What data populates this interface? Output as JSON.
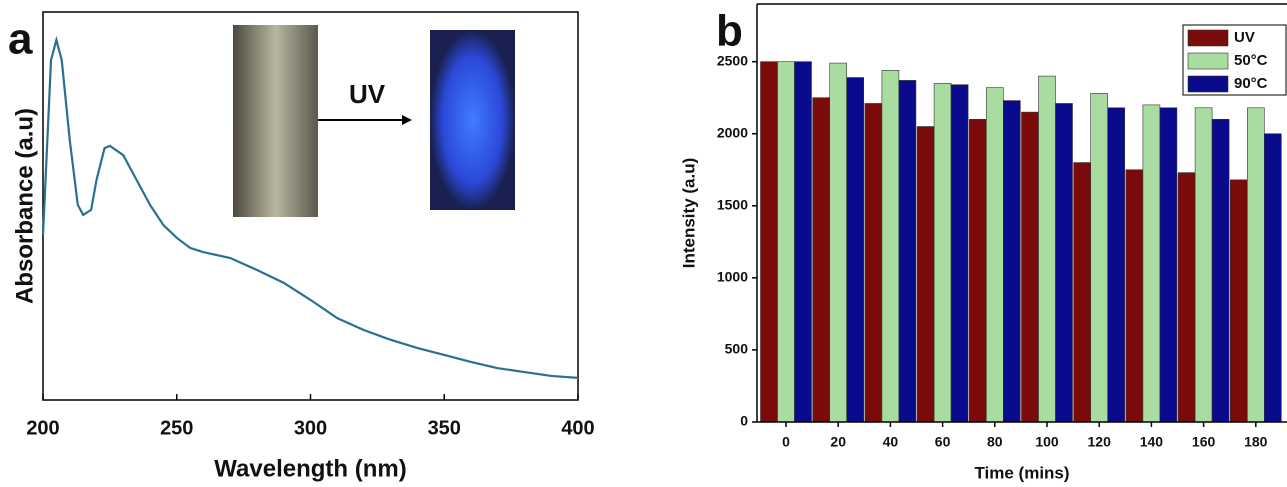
{
  "chart_data": [
    {
      "type": "line",
      "label": "a",
      "annotation": "UV",
      "xlabel": "Wavelength (nm)",
      "ylabel": "Absorbance (a.u)",
      "x": [
        200,
        203,
        205,
        207,
        210,
        213,
        215,
        218,
        220,
        223,
        225,
        230,
        235,
        240,
        245,
        250,
        255,
        260,
        270,
        280,
        290,
        300,
        310,
        320,
        330,
        340,
        350,
        360,
        370,
        380,
        390,
        400
      ],
      "values": [
        0.425,
        0.876,
        0.928,
        0.876,
        0.67,
        0.503,
        0.477,
        0.49,
        0.567,
        0.649,
        0.655,
        0.631,
        0.567,
        0.503,
        0.451,
        0.418,
        0.392,
        0.381,
        0.366,
        0.335,
        0.302,
        0.258,
        0.211,
        0.18,
        0.155,
        0.134,
        0.116,
        0.098,
        0.082,
        0.072,
        0.062,
        0.057
      ],
      "color": "#2a7090",
      "xlim": [
        200,
        400
      ],
      "xticks": [
        200,
        250,
        300,
        350,
        400
      ],
      "ylim": [
        0,
        1
      ]
    },
    {
      "type": "bar",
      "label": "b",
      "xlabel": "Time (mins)",
      "ylabel": "Intensity (a.u)",
      "categories": [
        "0",
        "20",
        "40",
        "60",
        "80",
        "100",
        "120",
        "140",
        "160",
        "180"
      ],
      "series": [
        {
          "name": "UV",
          "color": "#7b0a0a",
          "values": [
            2500,
            2250,
            2210,
            2050,
            2100,
            2150,
            1800,
            1750,
            1730,
            1680
          ]
        },
        {
          "name": "50°C",
          "color": "#a8dca0",
          "values": [
            2500,
            2490,
            2440,
            2350,
            2320,
            2400,
            2280,
            2200,
            2180,
            2180
          ]
        },
        {
          "name": "90°C",
          "color": "#0a0a8c",
          "values": [
            2500,
            2390,
            2370,
            2340,
            2230,
            2210,
            2180,
            2180,
            2100,
            2000
          ]
        }
      ],
      "ylim": [
        0,
        2900
      ],
      "yticks": [
        0,
        500,
        1000,
        1500,
        2000,
        2500
      ],
      "legend": "upper-right"
    }
  ]
}
